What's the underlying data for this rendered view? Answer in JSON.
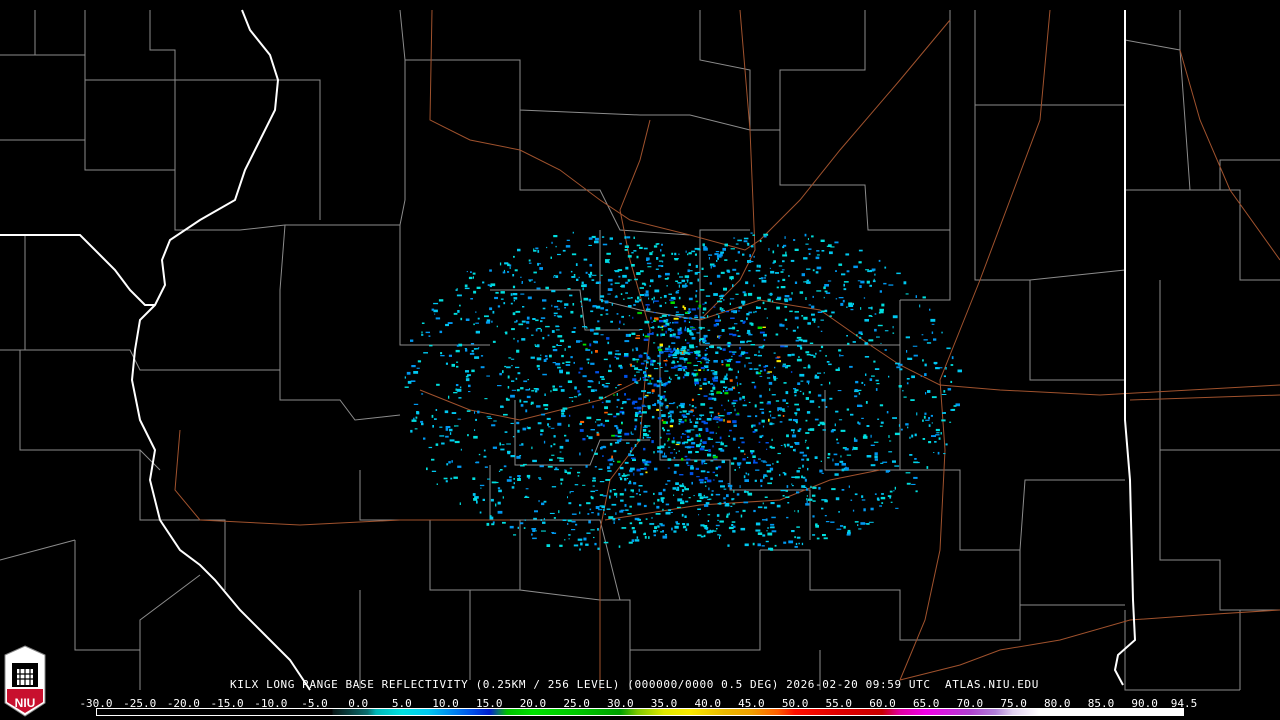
{
  "product": {
    "title": "KILX LONG RANGE BASE REFLECTIVITY (0.25KM / 256 LEVEL) (000000/0000 0.5 DEG) 2026-02-20 09:59 UTC  ATLAS.NIU.EDU",
    "radar_site": "KILX",
    "timestamp": "2026-02-20 09:59 UTC",
    "source": "ATLAS.NIU.EDU"
  },
  "logo": {
    "text": "NIU",
    "colors": {
      "red": "#c8102e",
      "white": "#ffffff"
    }
  },
  "colorbar": {
    "min": -30.0,
    "max": 94.5,
    "tick_labels": [
      "-30.0",
      "-25.0",
      "-20.0",
      "-15.0",
      "-10.0",
      "-5.0",
      "0.0",
      "5.0",
      "10.0",
      "15.0",
      "20.0",
      "25.0",
      "30.0",
      "35.0",
      "40.0",
      "45.0",
      "50.0",
      "55.0",
      "60.0",
      "65.0",
      "70.0",
      "75.0",
      "80.0",
      "85.0",
      "90.0",
      "94.5"
    ],
    "stops": [
      [
        -30,
        "#000000"
      ],
      [
        -3,
        "#000000"
      ],
      [
        -3,
        "#071414"
      ],
      [
        1,
        "#0a6e6e"
      ],
      [
        2,
        "#00b8b8"
      ],
      [
        5,
        "#00dede"
      ],
      [
        8,
        "#00c8f0"
      ],
      [
        10,
        "#0098f0"
      ],
      [
        13,
        "#0050e8"
      ],
      [
        15,
        "#0020d0"
      ],
      [
        16,
        "#0a7070"
      ],
      [
        17,
        "#00c000"
      ],
      [
        20,
        "#00e000"
      ],
      [
        25,
        "#00c800"
      ],
      [
        30,
        "#00a000"
      ],
      [
        32,
        "#80c800"
      ],
      [
        35,
        "#e0e800"
      ],
      [
        38,
        "#f8e800"
      ],
      [
        42,
        "#e8b800"
      ],
      [
        45,
        "#f0a000"
      ],
      [
        48,
        "#ff6000"
      ],
      [
        50,
        "#ff1000"
      ],
      [
        55,
        "#e00000"
      ],
      [
        60,
        "#c80000"
      ],
      [
        62,
        "#e000a0"
      ],
      [
        65,
        "#f000e8"
      ],
      [
        70,
        "#b040d0"
      ],
      [
        73,
        "#b080d8"
      ],
      [
        75,
        "#e0d0f0"
      ],
      [
        78,
        "#ffffff"
      ],
      [
        94.5,
        "#ffffff"
      ]
    ]
  },
  "map_colors": {
    "county": "#8c8c8c",
    "state": "#ffffff",
    "highway": "#a0522d"
  }
}
